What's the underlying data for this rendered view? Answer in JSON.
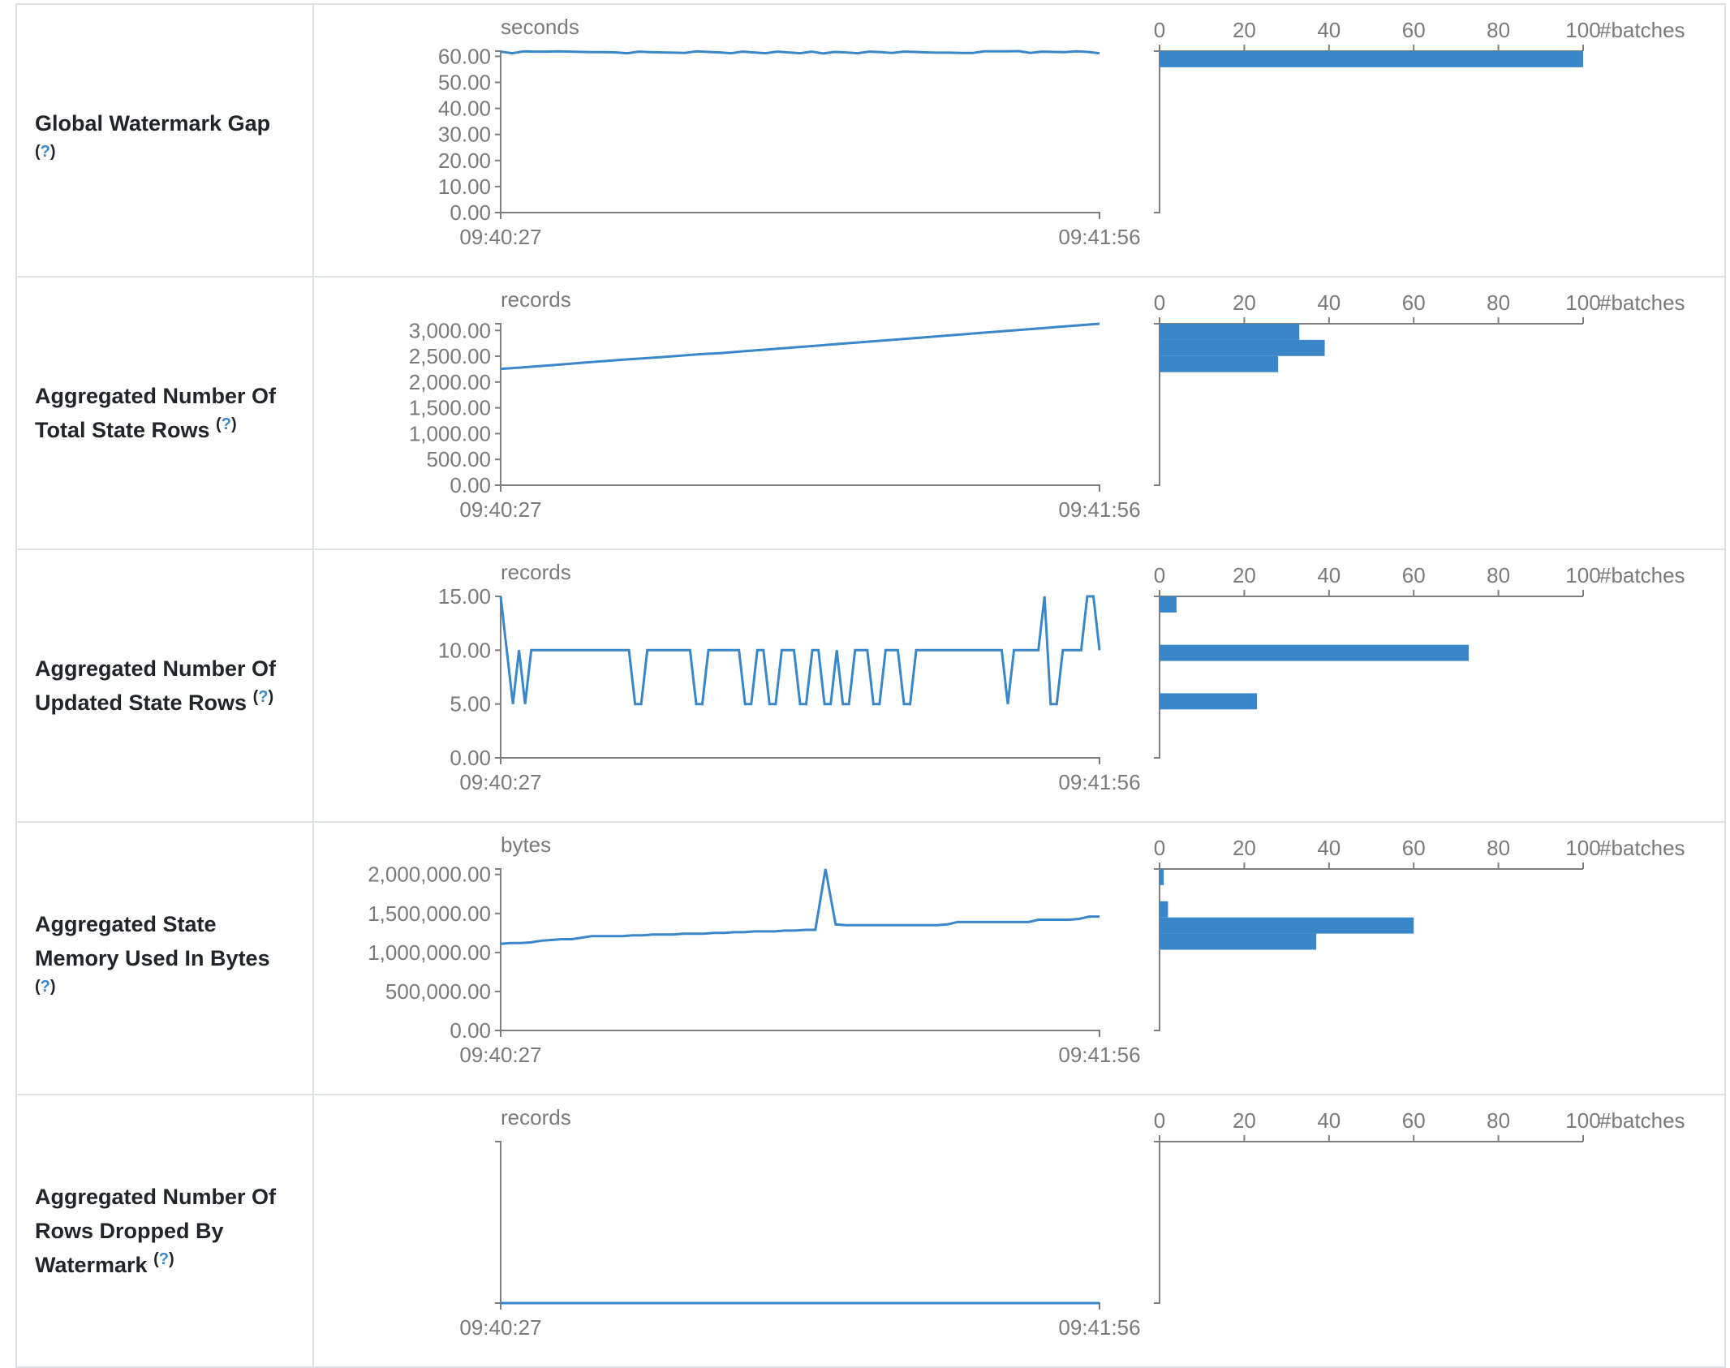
{
  "colors": {
    "series": "#3987c8",
    "axis": "#7f7f7f",
    "text": "#7a7a7a",
    "help": "#3a87c8"
  },
  "help_mark": {
    "open": "(",
    "q": "?",
    "close": ")"
  },
  "chart_data": [
    {
      "type": "line",
      "label_lines": [
        "Global Watermark Gap"
      ],
      "help_newline": true,
      "ylabel": "seconds",
      "x_start": "09:40:27",
      "x_end": "09:41:56",
      "ylim": [
        0,
        62
      ],
      "yticks": [
        0,
        10,
        20,
        30,
        40,
        50,
        60
      ],
      "ytick_labels": [
        "0.00",
        "10.00",
        "20.00",
        "30.00",
        "40.00",
        "50.00",
        "60.00"
      ],
      "values": [
        61.8,
        61.2,
        61.9,
        61.8,
        61.8,
        61.9,
        61.8,
        61.7,
        61.6,
        61.6,
        61.5,
        61.2,
        61.8,
        61.6,
        61.5,
        61.4,
        61.3,
        61.9,
        61.7,
        61.5,
        61.2,
        61.8,
        61.5,
        61.2,
        61.8,
        61.5,
        61.2,
        61.8,
        61.1,
        61.7,
        61.5,
        61.2,
        61.8,
        61.6,
        61.3,
        61.8,
        61.7,
        61.5,
        61.4,
        61.4,
        61.3,
        61.3,
        61.9,
        61.9,
        61.9,
        62.0,
        61.3,
        61.8,
        61.7,
        61.6,
        61.9,
        61.7,
        61.2
      ],
      "histogram": {
        "xlabel": "#batches",
        "xticks": [
          0,
          20,
          40,
          60,
          80,
          100
        ],
        "counts": [
          100,
          0,
          0,
          0,
          0,
          0,
          0,
          0,
          0,
          0
        ]
      }
    },
    {
      "type": "line",
      "label_lines": [
        "Aggregated Number Of",
        "Total State Rows"
      ],
      "help_newline": false,
      "ylabel": "records",
      "x_start": "09:40:27",
      "x_end": "09:41:56",
      "ylim": [
        0,
        3130
      ],
      "yticks": [
        0,
        500,
        1000,
        1500,
        2000,
        2500,
        3000
      ],
      "ytick_labels": [
        "0.00",
        "500.00",
        "1,000.00",
        "1,500.00",
        "2,000.00",
        "2,500.00",
        "3,000.00"
      ],
      "values": [
        2255,
        2280,
        2310,
        2340,
        2370,
        2400,
        2430,
        2455,
        2480,
        2510,
        2540,
        2560,
        2590,
        2620,
        2650,
        2680,
        2710,
        2740,
        2770,
        2800,
        2830,
        2860,
        2890,
        2920,
        2950,
        2980,
        3010,
        3040,
        3070,
        3100,
        3130
      ],
      "histogram": {
        "xlabel": "#batches",
        "xticks": [
          0,
          20,
          40,
          60,
          80,
          100
        ],
        "counts": [
          33,
          39,
          28,
          0,
          0,
          0,
          0,
          0,
          0,
          0
        ]
      }
    },
    {
      "type": "line",
      "label_lines": [
        "Aggregated Number Of",
        "Updated State Rows"
      ],
      "help_newline": false,
      "ylabel": "records",
      "x_start": "09:40:27",
      "x_end": "09:41:56",
      "ylim": [
        0,
        15
      ],
      "yticks": [
        0,
        5,
        10,
        15
      ],
      "ytick_labels": [
        "0.00",
        "5.00",
        "10.00",
        "15.00"
      ],
      "values": [
        15,
        10,
        5,
        10,
        5,
        10,
        10,
        10,
        10,
        10,
        10,
        10,
        10,
        10,
        10,
        10,
        10,
        10,
        10,
        10,
        10,
        10,
        5,
        5,
        10,
        10,
        10,
        10,
        10,
        10,
        10,
        10,
        5,
        5,
        10,
        10,
        10,
        10,
        10,
        10,
        5,
        5,
        10,
        10,
        5,
        5,
        10,
        10,
        10,
        5,
        5,
        10,
        10,
        5,
        5,
        10,
        5,
        5,
        10,
        10,
        10,
        5,
        5,
        10,
        10,
        10,
        5,
        5,
        10,
        10,
        10,
        10,
        10,
        10,
        10,
        10,
        10,
        10,
        10,
        10,
        10,
        10,
        10,
        5,
        10,
        10,
        10,
        10,
        10,
        15,
        5,
        5,
        10,
        10,
        10,
        10,
        15,
        15,
        10
      ],
      "histogram": {
        "xlabel": "#batches",
        "xticks": [
          0,
          20,
          40,
          60,
          80,
          100
        ],
        "counts": [
          4,
          0,
          0,
          73,
          0,
          0,
          23,
          0,
          0,
          0
        ]
      }
    },
    {
      "type": "line",
      "label_lines": [
        "Aggregated State",
        "Memory Used In Bytes"
      ],
      "help_newline": true,
      "ylabel": "bytes",
      "x_start": "09:40:27",
      "x_end": "09:41:56",
      "ylim": [
        0,
        2070000
      ],
      "yticks": [
        0,
        500000,
        1000000,
        1500000,
        2000000
      ],
      "ytick_labels": [
        "0.00",
        "500,000.00",
        "1,000,000.00",
        "1,500,000.00",
        "2,000,000.00"
      ],
      "values": [
        1110000,
        1120000,
        1120000,
        1130000,
        1150000,
        1160000,
        1170000,
        1170000,
        1190000,
        1210000,
        1210000,
        1210000,
        1210000,
        1220000,
        1220000,
        1230000,
        1230000,
        1230000,
        1240000,
        1240000,
        1240000,
        1250000,
        1250000,
        1260000,
        1260000,
        1270000,
        1270000,
        1270000,
        1280000,
        1280000,
        1290000,
        1290000,
        2070000,
        1360000,
        1350000,
        1350000,
        1350000,
        1350000,
        1350000,
        1350000,
        1350000,
        1350000,
        1350000,
        1350000,
        1360000,
        1390000,
        1390000,
        1390000,
        1390000,
        1390000,
        1390000,
        1390000,
        1390000,
        1420000,
        1420000,
        1420000,
        1420000,
        1430000,
        1460000,
        1460000
      ],
      "histogram": {
        "xlabel": "#batches",
        "xticks": [
          0,
          20,
          40,
          60,
          80,
          100
        ],
        "counts": [
          1,
          0,
          2,
          60,
          37,
          0,
          0,
          0,
          0,
          0
        ]
      }
    },
    {
      "type": "line",
      "label_lines": [
        "Aggregated Number Of",
        "Rows Dropped By",
        "Watermark"
      ],
      "help_newline": false,
      "ylabel": "records",
      "x_start": "09:40:27",
      "x_end": "09:41:56",
      "ylim": [
        0,
        1
      ],
      "yticks": [],
      "ytick_labels": [],
      "values": [
        0,
        0,
        0,
        0,
        0,
        0,
        0,
        0,
        0,
        0,
        0,
        0,
        0,
        0,
        0,
        0,
        0,
        0,
        0,
        0
      ],
      "histogram": {
        "xlabel": "#batches",
        "xticks": [
          0,
          20,
          40,
          60,
          80,
          100
        ],
        "counts": [
          0,
          0,
          0,
          0,
          0,
          0,
          0,
          0,
          0,
          0
        ]
      }
    }
  ]
}
